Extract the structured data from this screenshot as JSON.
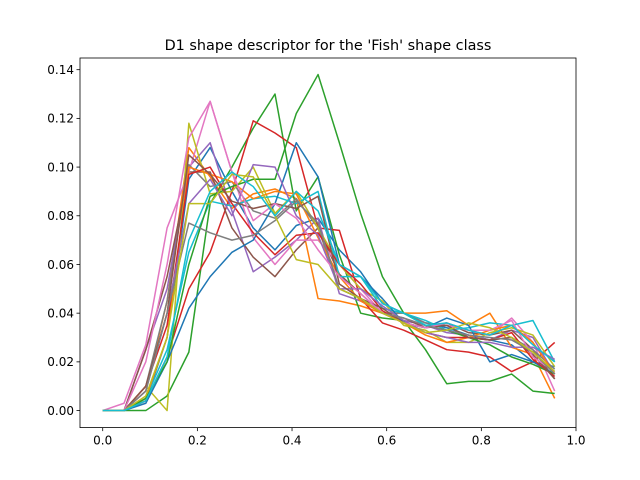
{
  "chart_data": {
    "type": "line",
    "title": "D1 shape descriptor for the 'Fish' shape class",
    "xlabel": "",
    "ylabel": "",
    "xlim": [
      -0.048,
      1.0
    ],
    "ylim": [
      -0.007,
      0.1448
    ],
    "x_ticks": [
      0.0,
      0.2,
      0.4,
      0.6,
      0.8,
      1.0
    ],
    "x_tick_labels": [
      "0.0",
      "0.2",
      "0.4",
      "0.6",
      "0.8",
      "1.0"
    ],
    "y_ticks": [
      0.0,
      0.02,
      0.04,
      0.06,
      0.08,
      0.1,
      0.12,
      0.14
    ],
    "y_tick_labels": [
      "0.00",
      "0.02",
      "0.04",
      "0.06",
      "0.08",
      "0.10",
      "0.12",
      "0.14"
    ],
    "grid": false,
    "legend": "none",
    "x": [
      0.0,
      0.045,
      0.091,
      0.136,
      0.182,
      0.227,
      0.273,
      0.318,
      0.364,
      0.409,
      0.455,
      0.5,
      0.545,
      0.591,
      0.636,
      0.682,
      0.727,
      0.773,
      0.818,
      0.864,
      0.909,
      0.955
    ],
    "series": [
      {
        "color": "#1f77b4",
        "values": [
          0,
          0,
          0.004,
          0.03,
          0.095,
          0.108,
          0.09,
          0.075,
          0.066,
          0.076,
          0.079,
          0.066,
          0.057,
          0.044,
          0.04,
          0.036,
          0.034,
          0.031,
          0.029,
          0.027,
          0.02,
          0.018
        ]
      },
      {
        "color": "#ff7f0e",
        "values": [
          0,
          0,
          0.008,
          0.045,
          0.108,
          0.096,
          0.083,
          0.089,
          0.091,
          0.087,
          0.046,
          0.045,
          0.043,
          0.04,
          0.04,
          0.04,
          0.041,
          0.035,
          0.04,
          0.026,
          0.023,
          0.005
        ]
      },
      {
        "color": "#2ca02c",
        "values": [
          0,
          0,
          0,
          0.006,
          0.024,
          0.085,
          0.1,
          0.116,
          0.13,
          0.082,
          0.096,
          0.064,
          0.04,
          0.038,
          0.037,
          0.025,
          0.011,
          0.012,
          0.012,
          0.015,
          0.008,
          0.007
        ]
      },
      {
        "color": "#d62728",
        "values": [
          0,
          0,
          0.004,
          0.022,
          0.05,
          0.065,
          0.09,
          0.119,
          0.114,
          0.108,
          0.075,
          0.074,
          0.046,
          0.036,
          0.033,
          0.029,
          0.025,
          0.024,
          0.022,
          0.016,
          0.02,
          0.028
        ]
      },
      {
        "color": "#9467bd",
        "values": [
          0,
          0,
          0.025,
          0.05,
          0.1,
          0.11,
          0.082,
          0.057,
          0.063,
          0.07,
          0.079,
          0.048,
          0.045,
          0.04,
          0.037,
          0.035,
          0.032,
          0.031,
          0.029,
          0.033,
          0.03,
          0.015
        ]
      },
      {
        "color": "#8c564b",
        "values": [
          0,
          0,
          0.025,
          0.055,
          0.098,
          0.098,
          0.075,
          0.063,
          0.055,
          0.066,
          0.075,
          0.056,
          0.048,
          0.04,
          0.038,
          0.034,
          0.036,
          0.032,
          0.031,
          0.033,
          0.025,
          0.013
        ]
      },
      {
        "color": "#e377c2",
        "values": [
          0,
          0.003,
          0.027,
          0.075,
          0.098,
          0.127,
          0.098,
          0.071,
          0.06,
          0.07,
          0.07,
          0.06,
          0.05,
          0.04,
          0.038,
          0.035,
          0.035,
          0.033,
          0.031,
          0.038,
          0.028,
          0.008
        ]
      },
      {
        "color": "#7f7f7f",
        "values": [
          0,
          0,
          0.01,
          0.045,
          0.101,
          0.092,
          0.094,
          0.082,
          0.079,
          0.087,
          0.075,
          0.05,
          0.046,
          0.04,
          0.04,
          0.036,
          0.035,
          0.03,
          0.029,
          0.03,
          0.025,
          0.017
        ]
      },
      {
        "color": "#bcbd22",
        "values": [
          0,
          0,
          0.01,
          0,
          0.118,
          0.089,
          0.09,
          0.1,
          0.081,
          0.09,
          0.075,
          0.06,
          0.05,
          0.045,
          0.035,
          0.033,
          0.028,
          0.028,
          0.032,
          0.034,
          0.031,
          0.018
        ]
      },
      {
        "color": "#17becf",
        "values": [
          0,
          0,
          0.005,
          0.025,
          0.065,
          0.086,
          0.084,
          0.087,
          0.088,
          0.085,
          0.09,
          0.055,
          0.055,
          0.042,
          0.04,
          0.037,
          0.033,
          0.034,
          0.036,
          0.035,
          0.037,
          0.02
        ]
      },
      {
        "color": "#1f77b4",
        "values": [
          0,
          0,
          0.003,
          0.02,
          0.042,
          0.055,
          0.065,
          0.07,
          0.085,
          0.11,
          0.096,
          0.06,
          0.055,
          0.046,
          0.036,
          0.034,
          0.038,
          0.035,
          0.02,
          0.023,
          0.02,
          0.015
        ]
      },
      {
        "color": "#ff7f0e",
        "values": [
          0,
          0,
          0.005,
          0.03,
          0.1,
          0.097,
          0.094,
          0.087,
          0.09,
          0.089,
          0.071,
          0.055,
          0.045,
          0.04,
          0.036,
          0.031,
          0.028,
          0.03,
          0.033,
          0.035,
          0.028,
          0.015
        ]
      },
      {
        "color": "#2ca02c",
        "values": [
          0,
          0,
          0.005,
          0.02,
          0.06,
          0.088,
          0.092,
          0.095,
          0.095,
          0.122,
          0.138,
          0.11,
          0.081,
          0.055,
          0.04,
          0.035,
          0.033,
          0.03,
          0.027,
          0.022,
          0.019,
          0.015
        ]
      },
      {
        "color": "#d62728",
        "values": [
          0,
          0,
          0.01,
          0.035,
          0.097,
          0.1,
          0.085,
          0.073,
          0.064,
          0.072,
          0.073,
          0.06,
          0.052,
          0.041,
          0.036,
          0.032,
          0.03,
          0.03,
          0.029,
          0.032,
          0.021,
          0.014
        ]
      },
      {
        "color": "#9467bd",
        "values": [
          0,
          0,
          0.008,
          0.04,
          0.085,
          0.095,
          0.08,
          0.101,
          0.1,
          0.08,
          0.072,
          0.05,
          0.05,
          0.043,
          0.037,
          0.032,
          0.03,
          0.028,
          0.028,
          0.026,
          0.026,
          0.021
        ]
      },
      {
        "color": "#8c564b",
        "values": [
          0,
          0,
          0.01,
          0.04,
          0.105,
          0.097,
          0.086,
          0.083,
          0.085,
          0.083,
          0.088,
          0.052,
          0.046,
          0.042,
          0.036,
          0.034,
          0.035,
          0.03,
          0.029,
          0.03,
          0.023,
          0.013
        ]
      },
      {
        "color": "#e377c2",
        "values": [
          0,
          0,
          0.02,
          0.06,
          0.112,
          0.127,
          0.098,
          0.078,
          0.085,
          0.079,
          0.066,
          0.055,
          0.048,
          0.04,
          0.036,
          0.034,
          0.036,
          0.033,
          0.033,
          0.037,
          0.022,
          0.016
        ]
      },
      {
        "color": "#7f7f7f",
        "values": [
          0,
          0,
          0.008,
          0.04,
          0.077,
          0.073,
          0.07,
          0.072,
          0.078,
          0.086,
          0.077,
          0.05,
          0.046,
          0.04,
          0.038,
          0.035,
          0.033,
          0.031,
          0.03,
          0.029,
          0.024,
          0.015
        ]
      },
      {
        "color": "#bcbd22",
        "values": [
          0,
          0,
          0.006,
          0.03,
          0.085,
          0.085,
          0.097,
          0.096,
          0.08,
          0.062,
          0.06,
          0.05,
          0.046,
          0.04,
          0.036,
          0.032,
          0.033,
          0.036,
          0.034,
          0.03,
          0.024,
          0.016
        ]
      },
      {
        "color": "#17becf",
        "values": [
          0,
          0,
          0.004,
          0.022,
          0.07,
          0.09,
          0.098,
          0.092,
          0.08,
          0.09,
          0.082,
          0.06,
          0.055,
          0.044,
          0.04,
          0.035,
          0.036,
          0.033,
          0.031,
          0.035,
          0.027,
          0.02
        ]
      }
    ]
  }
}
